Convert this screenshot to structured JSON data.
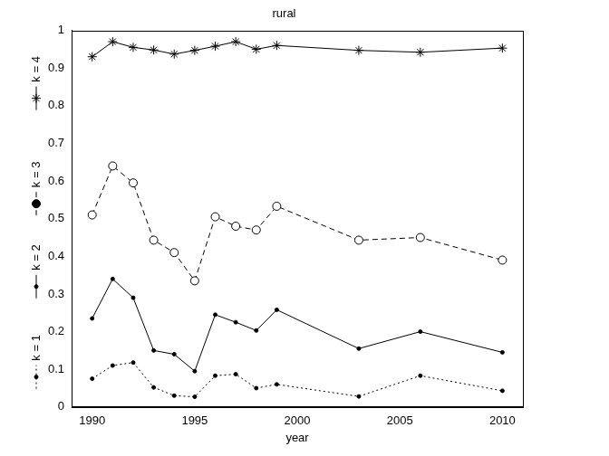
{
  "chart_data": {
    "type": "line",
    "title": "rural",
    "x_label": "year",
    "x": [
      1990,
      1991,
      1992,
      1993,
      1994,
      1995,
      1996,
      1997,
      1998,
      1999,
      2003,
      2006,
      2010
    ],
    "series": [
      {
        "name": "k = 1",
        "color": "#000000",
        "marker": "dot",
        "line_style": "dotted",
        "values": [
          0.075,
          0.11,
          0.118,
          0.052,
          0.03,
          0.027,
          0.083,
          0.087,
          0.05,
          0.06,
          0.028,
          0.083,
          0.043
        ]
      },
      {
        "name": "k = 2",
        "color": "#000000",
        "marker": "dot",
        "line_style": "solid",
        "values": [
          0.235,
          0.34,
          0.29,
          0.15,
          0.14,
          0.095,
          0.245,
          0.225,
          0.203,
          0.258,
          0.155,
          0.2,
          0.145
        ]
      },
      {
        "name": "k = 3",
        "color": "#000000",
        "marker": "circle",
        "line_style": "dashed",
        "values": [
          0.51,
          0.64,
          0.595,
          0.443,
          0.41,
          0.335,
          0.505,
          0.48,
          0.47,
          0.533,
          0.443,
          0.45,
          0.39
        ]
      },
      {
        "name": "k = 4",
        "color": "#000000",
        "marker": "star",
        "line_style": "solid",
        "values": [
          0.93,
          0.97,
          0.955,
          0.948,
          0.937,
          0.947,
          0.958,
          0.97,
          0.95,
          0.96,
          0.947,
          0.942,
          0.953
        ]
      }
    ],
    "xlim": [
      1989,
      2011
    ],
    "xticks": [
      1990,
      1995,
      2000,
      2005,
      2010
    ],
    "ylim": [
      0,
      1
    ],
    "yticks": [
      0,
      0.1,
      0.2,
      0.3,
      0.4,
      0.5,
      0.6,
      0.7,
      0.8,
      0.9,
      1
    ],
    "grid": false,
    "legend": "left"
  }
}
